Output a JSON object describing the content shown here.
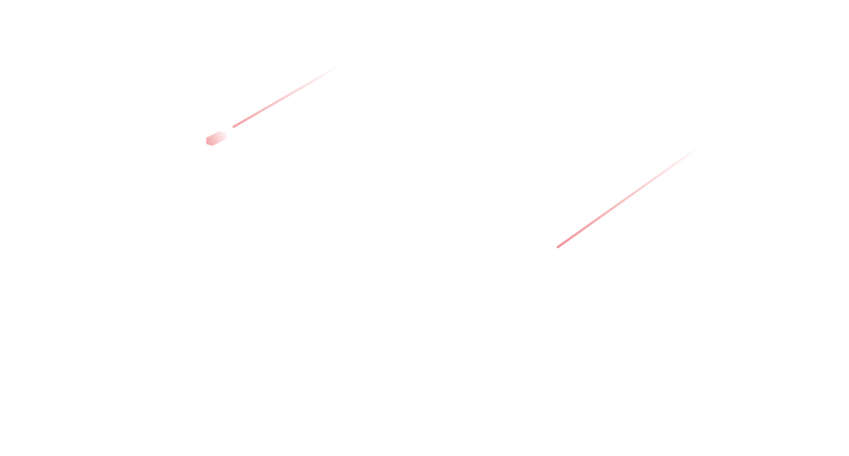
{
  "background_color": "#ffffff",
  "streak_color": "#f08a8f",
  "streaks": [
    {
      "name": "meteor-streak-left",
      "has_head": true
    },
    {
      "name": "meteor-streak-right",
      "has_head": false
    }
  ]
}
